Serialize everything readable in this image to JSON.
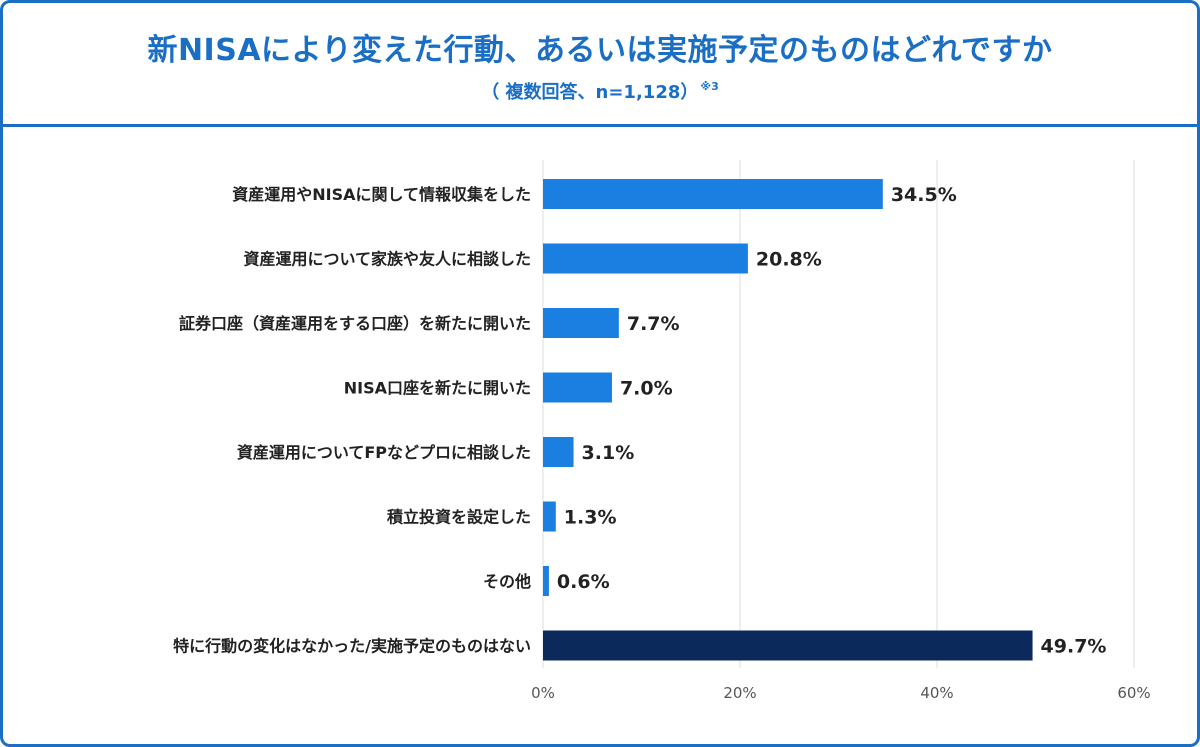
{
  "header": {
    "title": "新NISAにより変えた行動、あるいは実施予定のものはどれですか",
    "subtitle": "（ 複数回答、n=1,128）",
    "footnote": "※3"
  },
  "colors": {
    "accent": "#1a6fc4",
    "bar": "#1a7fe0",
    "bar_highlight": "#0b2a5b",
    "grid": "#d9dde3"
  },
  "chart_data": {
    "type": "bar",
    "orientation": "horizontal",
    "categories": [
      "資産運用やNISAに関して情報収集をした",
      "資産運用について家族や友人に相談した",
      "証券口座（資産運用をする口座）を新たに開いた",
      "NISA口座を新たに開いた",
      "資産運用についてFPなどプロに相談した",
      "積立投資を設定した",
      "その他",
      "特に行動の変化はなかった/実施予定のものはない"
    ],
    "values": [
      34.5,
      20.8,
      7.7,
      7.0,
      3.1,
      1.3,
      0.6,
      49.7
    ],
    "value_labels": [
      "34.5%",
      "20.8%",
      "7.7%",
      "7.0%",
      "3.1%",
      "1.3%",
      "0.6%",
      "49.7%"
    ],
    "highlight_index": 7,
    "xlim": [
      0,
      60
    ],
    "xticks": [
      0,
      20,
      40,
      60
    ],
    "xtick_labels": [
      "0%",
      "20%",
      "40%",
      "60%"
    ],
    "grid": true
  }
}
